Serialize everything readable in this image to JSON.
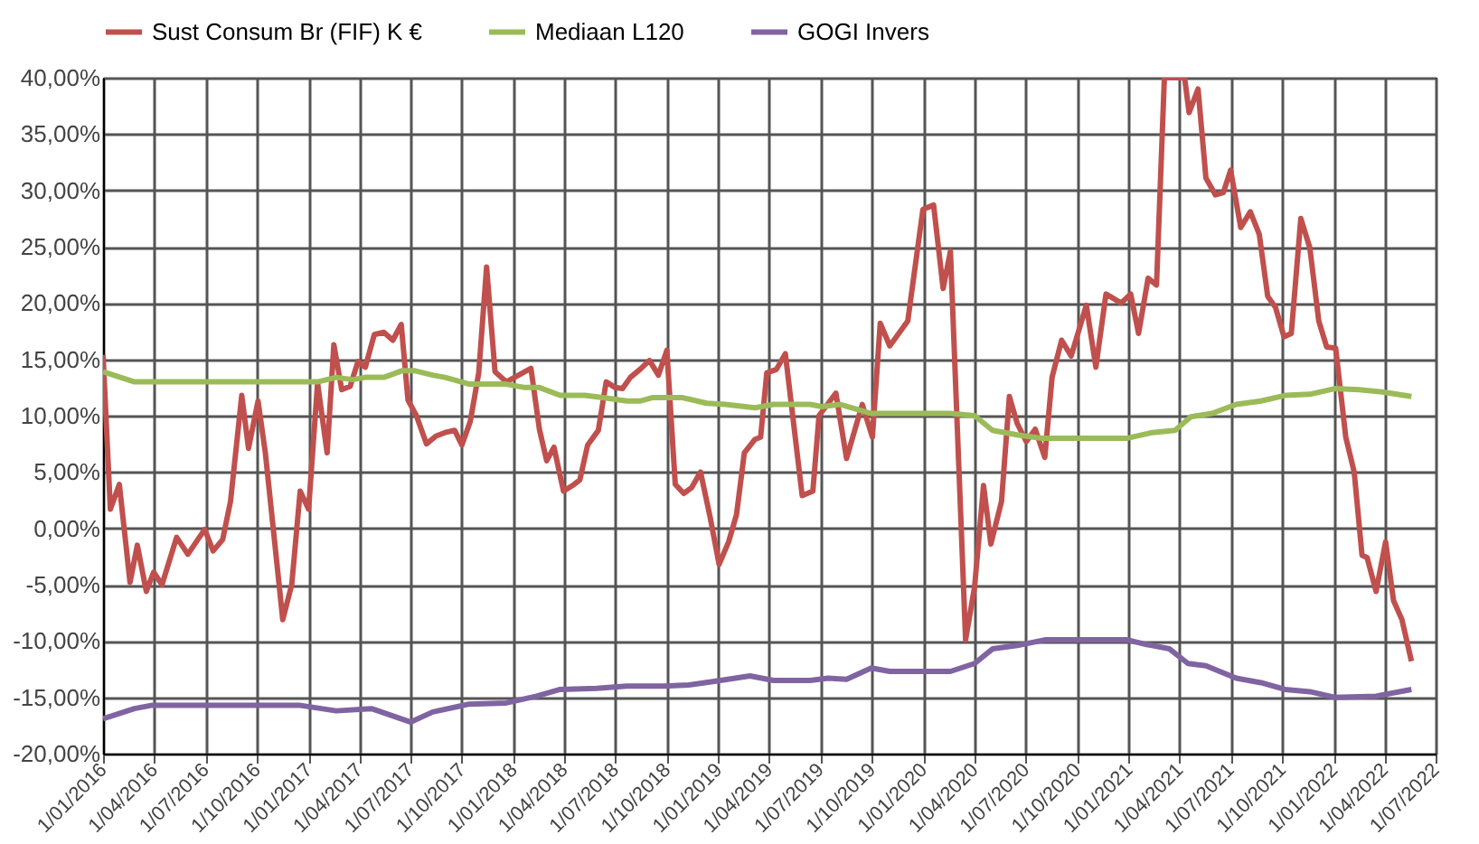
{
  "chart_data": {
    "type": "line",
    "xlim": [
      "2016-01-01",
      "2022-07-01"
    ],
    "xticks": [
      {
        "value": "2016-01-01",
        "label": "1/01/2016"
      },
      {
        "value": "2016-04-01",
        "label": "1/04/2016"
      },
      {
        "value": "2016-07-01",
        "label": "1/07/2016"
      },
      {
        "value": "2016-10-01",
        "label": "1/10/2016"
      },
      {
        "value": "2017-01-01",
        "label": "1/01/2017"
      },
      {
        "value": "2017-04-01",
        "label": "1/04/2017"
      },
      {
        "value": "2017-07-01",
        "label": "1/07/2017"
      },
      {
        "value": "2017-10-01",
        "label": "1/10/2017"
      },
      {
        "value": "2018-01-01",
        "label": "1/01/2018"
      },
      {
        "value": "2018-04-01",
        "label": "1/04/2018"
      },
      {
        "value": "2018-07-01",
        "label": "1/07/2018"
      },
      {
        "value": "2018-10-01",
        "label": "1/10/2018"
      },
      {
        "value": "2019-01-01",
        "label": "1/01/2019"
      },
      {
        "value": "2019-04-01",
        "label": "1/04/2019"
      },
      {
        "value": "2019-07-01",
        "label": "1/07/2019"
      },
      {
        "value": "2019-10-01",
        "label": "1/10/2019"
      },
      {
        "value": "2020-01-01",
        "label": "1/01/2020"
      },
      {
        "value": "2020-04-01",
        "label": "1/04/2020"
      },
      {
        "value": "2020-07-01",
        "label": "1/07/2020"
      },
      {
        "value": "2020-10-01",
        "label": "1/10/2020"
      },
      {
        "value": "2021-01-01",
        "label": "1/01/2021"
      },
      {
        "value": "2021-04-01",
        "label": "1/04/2021"
      },
      {
        "value": "2021-07-01",
        "label": "1/07/2021"
      },
      {
        "value": "2021-10-01",
        "label": "1/10/2021"
      },
      {
        "value": "2022-01-01",
        "label": "1/01/2022"
      },
      {
        "value": "2022-04-01",
        "label": "1/04/2022"
      },
      {
        "value": "2022-07-01",
        "label": "1/07/2022"
      }
    ],
    "ylim": [
      -20,
      40
    ],
    "yticks": [
      {
        "value": -20,
        "label": "-20,00%"
      },
      {
        "value": -15,
        "label": "-15,00%"
      },
      {
        "value": -10,
        "label": "-10,00%"
      },
      {
        "value": -5,
        "label": "-5,00%"
      },
      {
        "value": 0,
        "label": "0,00%"
      },
      {
        "value": 5,
        "label": "5,00%"
      },
      {
        "value": 10,
        "label": "10,00%"
      },
      {
        "value": 15,
        "label": "15,00%"
      },
      {
        "value": 20,
        "label": "20,00%"
      },
      {
        "value": 25,
        "label": "25,00%"
      },
      {
        "value": 30,
        "label": "30,00%"
      },
      {
        "value": 35,
        "label": "35,00%"
      },
      {
        "value": 40,
        "label": "40,00%"
      }
    ],
    "grid": true,
    "legend": "top",
    "marker": "none",
    "line_style": "solid",
    "series": [
      {
        "name": "Sust Consum Br (FIF) K €",
        "color": "#c0504d",
        "x": [
          "2016-01-01",
          "2016-01-14",
          "2016-01-30",
          "2016-02-18",
          "2016-03-02",
          "2016-03-18",
          "2016-03-31",
          "2016-04-15",
          "2016-05-11",
          "2016-05-31",
          "2016-06-30",
          "2016-07-15",
          "2016-08-01",
          "2016-08-15",
          "2016-09-04",
          "2016-09-16",
          "2016-10-03",
          "2016-10-16",
          "2016-11-16",
          "2016-12-02",
          "2016-12-17",
          "2017-01-01",
          "2017-01-17",
          "2017-02-03",
          "2017-02-15",
          "2017-03-01",
          "2017-03-16",
          "2017-03-30",
          "2017-04-12",
          "2017-04-28",
          "2017-05-15",
          "2017-05-31",
          "2017-06-15",
          "2017-06-27",
          "2017-07-12",
          "2017-07-30",
          "2017-08-16",
          "2017-09-01",
          "2017-09-18",
          "2017-10-01",
          "2017-10-16",
          "2017-10-31",
          "2017-11-14",
          "2017-11-29",
          "2017-12-19",
          "2018-01-10",
          "2018-02-01",
          "2018-02-16",
          "2018-03-01",
          "2018-03-14",
          "2018-03-31",
          "2018-04-16",
          "2018-04-29",
          "2018-05-13",
          "2018-06-01",
          "2018-06-15",
          "2018-07-01",
          "2018-07-14",
          "2018-07-28",
          "2018-08-14",
          "2018-08-31",
          "2018-09-16",
          "2018-10-01",
          "2018-10-16",
          "2018-10-31",
          "2018-11-14",
          "2018-11-30",
          "2018-12-17",
          "2019-01-02",
          "2019-01-19",
          "2019-02-02",
          "2019-02-16",
          "2019-03-07",
          "2019-03-17",
          "2019-03-28",
          "2019-04-14",
          "2019-04-30",
          "2019-05-30",
          "2019-06-18",
          "2019-06-29",
          "2019-07-29",
          "2019-08-17",
          "2019-09-14",
          "2019-10-02",
          "2019-10-16",
          "2019-11-02",
          "2019-12-04",
          "2019-12-31",
          "2020-01-19",
          "2020-02-05",
          "2020-02-18",
          "2020-03-16",
          "2020-04-01",
          "2020-04-17",
          "2020-04-30",
          "2020-05-19",
          "2020-06-02",
          "2020-06-16",
          "2020-07-02",
          "2020-07-18",
          "2020-08-04",
          "2020-08-17",
          "2020-09-03",
          "2020-09-20",
          "2020-10-17",
          "2020-11-03",
          "2020-11-21",
          "2020-12-18",
          "2021-01-04",
          "2021-01-18",
          "2021-02-04",
          "2021-02-19",
          "2021-03-05",
          "2021-04-10",
          "2021-04-18",
          "2021-05-04",
          "2021-05-18",
          "2021-06-04",
          "2021-06-18",
          "2021-07-01",
          "2021-07-19",
          "2021-08-05",
          "2021-08-21",
          "2021-09-05",
          "2021-09-19",
          "2021-10-04",
          "2021-10-17",
          "2021-11-03",
          "2021-11-19",
          "2021-12-05",
          "2021-12-19",
          "2022-01-04",
          "2022-01-22",
          "2022-02-06",
          "2022-02-20",
          "2022-03-01",
          "2022-03-17",
          "2022-04-03",
          "2022-04-17",
          "2022-05-02",
          "2022-05-19"
        ],
        "values": [
          15.4,
          1.7,
          3.9,
          -4.8,
          -1.5,
          -5.6,
          -3.9,
          -5.0,
          -0.8,
          -2.3,
          -0.1,
          -2.0,
          -1.0,
          2.4,
          11.8,
          7.1,
          11.3,
          6.7,
          -8.1,
          -5.0,
          3.3,
          1.7,
          12.9,
          6.7,
          16.3,
          12.3,
          12.6,
          14.8,
          14.3,
          17.2,
          17.4,
          16.7,
          18.1,
          11.4,
          10.0,
          7.5,
          8.2,
          8.5,
          8.7,
          7.4,
          9.5,
          13.8,
          23.2,
          13.9,
          13.0,
          13.6,
          14.2,
          8.8,
          6.0,
          7.2,
          3.3,
          3.8,
          4.3,
          7.4,
          8.7,
          13.0,
          12.5,
          12.4,
          13.4,
          14.1,
          14.9,
          13.6,
          15.8,
          3.9,
          3.1,
          3.6,
          5.0,
          1.0,
          -3.2,
          -1.2,
          1.2,
          6.7,
          7.9,
          8.1,
          13.8,
          14.1,
          15.5,
          2.9,
          3.3,
          10.0,
          12.0,
          6.2,
          11.0,
          8.1,
          18.2,
          16.2,
          18.4,
          28.3,
          28.7,
          21.3,
          24.6,
          -9.9,
          -5.2,
          3.8,
          -1.4,
          2.4,
          11.7,
          9.3,
          7.7,
          8.8,
          6.3,
          13.4,
          16.7,
          15.3,
          19.8,
          14.3,
          20.8,
          20.0,
          20.8,
          17.3,
          22.2,
          21.6,
          40,
          40,
          36.9,
          39.0,
          31.1,
          29.6,
          29.8,
          31.8,
          26.7,
          28.1,
          26.1,
          20.6,
          19.6,
          17.0,
          17.3,
          27.5,
          24.9,
          18.4,
          16.1,
          16.0,
          8.1,
          5.0,
          -2.4,
          -2.6,
          -5.6,
          -1.2,
          -6.4,
          -8.1,
          -11.8
        ]
      },
      {
        "name": "Mediaan L120",
        "color": "#9bbb59",
        "x": [
          "2016-01-01",
          "2016-02-26",
          "2017-01-17",
          "2017-02-19",
          "2017-03-21",
          "2017-04-12",
          "2017-05-15",
          "2017-06-17",
          "2017-07-08",
          "2017-08-10",
          "2017-09-01",
          "2017-09-23",
          "2017-10-14",
          "2017-12-19",
          "2018-01-21",
          "2018-02-16",
          "2018-03-25",
          "2018-05-08",
          "2018-06-09",
          "2018-07-22",
          "2018-08-14",
          "2018-09-05",
          "2018-10-29",
          "2018-12-11",
          "2019-01-13",
          "2019-03-07",
          "2019-04-09",
          "2019-06-13",
          "2019-07-04",
          "2019-08-06",
          "2019-09-30",
          "2020-02-18",
          "2020-04-01",
          "2020-05-03",
          "2020-06-16",
          "2020-07-29",
          "2020-12-29",
          "2021-02-11",
          "2021-03-24",
          "2021-04-21",
          "2021-05-29",
          "2021-07-11",
          "2021-08-24",
          "2021-10-06",
          "2021-11-19",
          "2022-01-02",
          "2022-02-15",
          "2022-03-28",
          "2022-05-19"
        ],
        "values": [
          13.9,
          13.0,
          13.0,
          13.4,
          13.2,
          13.4,
          13.4,
          14.0,
          14.0,
          13.6,
          13.4,
          13.1,
          12.8,
          12.8,
          12.5,
          12.5,
          11.8,
          11.8,
          11.6,
          11.3,
          11.3,
          11.6,
          11.6,
          11.1,
          11.0,
          10.7,
          11.0,
          11.0,
          10.8,
          11.0,
          10.2,
          10.2,
          10.0,
          8.7,
          8.3,
          8.0,
          8.0,
          8.5,
          8.7,
          9.9,
          10.2,
          11.0,
          11.3,
          11.8,
          11.9,
          12.4,
          12.3,
          12.1,
          11.7
        ]
      },
      {
        "name": "GOGI Invers",
        "color": "#8064a2",
        "x": [
          "2016-01-01",
          "2016-02-26",
          "2016-03-29",
          "2016-12-15",
          "2017-02-19",
          "2017-04-23",
          "2017-07-02",
          "2017-08-10",
          "2017-10-14",
          "2017-12-19",
          "2018-02-11",
          "2018-03-25",
          "2018-05-29",
          "2018-07-22",
          "2018-09-26",
          "2018-11-09",
          "2018-12-22",
          "2019-02-26",
          "2019-04-09",
          "2019-06-13",
          "2019-07-15",
          "2019-08-17",
          "2019-09-30",
          "2019-11-02",
          "2020-02-18",
          "2020-04-01",
          "2020-05-03",
          "2020-06-16",
          "2020-08-04",
          "2020-12-29",
          "2021-01-31",
          "2021-03-14",
          "2021-04-16",
          "2021-05-18",
          "2021-07-11",
          "2021-08-24",
          "2021-10-06",
          "2021-11-19",
          "2022-01-02",
          "2022-03-17",
          "2022-05-19"
        ],
        "values": [
          -16.9,
          -16.0,
          -15.7,
          -15.7,
          -16.2,
          -16.0,
          -17.2,
          -16.3,
          -15.6,
          -15.5,
          -14.9,
          -14.3,
          -14.2,
          -14.0,
          -14.0,
          -13.9,
          -13.6,
          -13.1,
          -13.5,
          -13.5,
          -13.3,
          -13.4,
          -12.4,
          -12.7,
          -12.7,
          -12.0,
          -10.7,
          -10.4,
          -9.9,
          -9.9,
          -10.3,
          -10.7,
          -12.0,
          -12.2,
          -13.3,
          -13.7,
          -14.3,
          -14.5,
          -15.0,
          -14.9,
          -14.3
        ]
      }
    ]
  }
}
